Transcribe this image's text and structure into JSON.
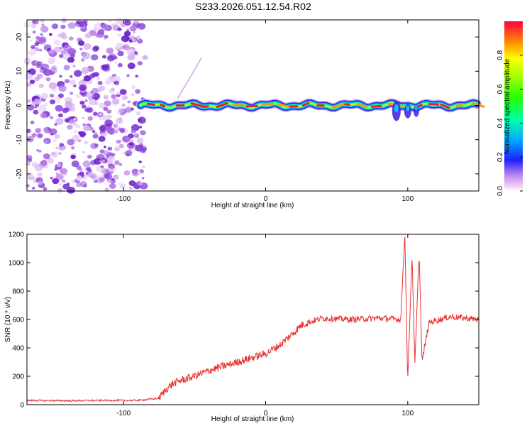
{
  "chart_data": [
    {
      "type": "heatmap",
      "title": "S233.2026.051.12.54.R02",
      "xlabel": "Height of straight line (km)",
      "ylabel": "Frequency (Hz)",
      "xlim": [
        -168,
        150
      ],
      "ylim": [
        -25,
        25
      ],
      "xticks": [
        -100,
        0,
        100
      ],
      "yticks": [
        -20,
        -10,
        0,
        10,
        20
      ],
      "noise_region_x": [
        -168,
        -83
      ],
      "ridge_frequency_hz": 0,
      "colorbar": {
        "label": "Normalized spectral amplitude",
        "range": [
          0,
          1
        ],
        "ticks": [
          0.0,
          0.2,
          0.4,
          0.6,
          0.8
        ]
      }
    },
    {
      "type": "line",
      "title": "",
      "xlabel": "Height of straight line (km)",
      "ylabel": "SNR (10 * v/v)",
      "xlim": [
        -168,
        150
      ],
      "ylim": [
        0,
        1200
      ],
      "xticks": [
        -100,
        0,
        100
      ],
      "yticks": [
        0,
        200,
        400,
        600,
        800,
        1000,
        1200
      ],
      "color": "#e8312f",
      "series": [
        {
          "name": "SNR",
          "x": [
            -168,
            -140,
            -110,
            -90,
            -75,
            -70,
            -65,
            -60,
            -50,
            -40,
            -30,
            -20,
            -10,
            0,
            10,
            20,
            25,
            30,
            40,
            60,
            80,
            95,
            98,
            100,
            103,
            105,
            108,
            110,
            115,
            130,
            150
          ],
          "values": [
            30,
            28,
            30,
            30,
            45,
            110,
            150,
            170,
            200,
            240,
            270,
            300,
            330,
            360,
            420,
            510,
            560,
            580,
            610,
            600,
            610,
            600,
            1200,
            160,
            1060,
            280,
            1080,
            300,
            580,
            620,
            600
          ]
        }
      ]
    }
  ]
}
